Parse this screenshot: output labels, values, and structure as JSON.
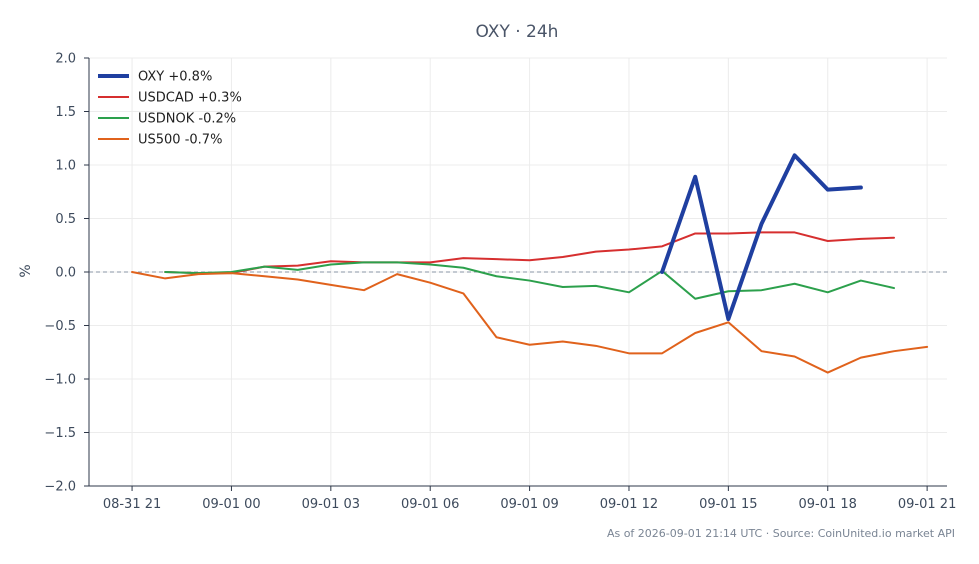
{
  "chart_data": {
    "type": "line",
    "title": "OXY · 24h",
    "ylabel": "%",
    "xlabel": "",
    "ylim": [
      -2.0,
      2.0
    ],
    "yticks": [
      2.0,
      1.5,
      1.0,
      0.5,
      0.0,
      -0.5,
      -1.0,
      -1.5,
      -2.0
    ],
    "ytick_labels": [
      "2.0",
      "1.5",
      "1.0",
      "0.5",
      "0.0",
      "−0.5",
      "−1.0",
      "−1.5",
      "−2.0"
    ],
    "xlim": [
      -1.3,
      24.6
    ],
    "xticks": [
      0,
      3,
      6,
      9,
      12,
      15,
      18,
      21,
      24
    ],
    "xtick_labels": [
      "08-31 21",
      "09-01 00",
      "09-01 03",
      "09-01 06",
      "09-01 09",
      "09-01 12",
      "09-01 15",
      "09-01 18",
      "09-01 21"
    ],
    "x_unit_note": "hours",
    "grid": true,
    "zero_line": true,
    "legend_position": "top-left",
    "series": [
      {
        "name": "OXY +0.8%",
        "color": "#1f3fa0",
        "width": "thick",
        "points": [
          [
            16,
            0.0
          ],
          [
            17,
            0.89
          ],
          [
            18,
            -0.44
          ],
          [
            19,
            0.45
          ],
          [
            20,
            1.09
          ],
          [
            21,
            0.77
          ],
          [
            22,
            0.79
          ]
        ]
      },
      {
        "name": "USDCAD +0.3%",
        "color": "#d62f2f",
        "width": "normal",
        "points": [
          [
            1,
            0.0
          ],
          [
            2,
            -0.01
          ],
          [
            3,
            -0.01
          ],
          [
            4,
            0.05
          ],
          [
            5,
            0.06
          ],
          [
            6,
            0.1
          ],
          [
            7,
            0.09
          ],
          [
            8,
            0.09
          ],
          [
            9,
            0.09
          ],
          [
            10,
            0.13
          ],
          [
            11,
            0.12
          ],
          [
            12,
            0.11
          ],
          [
            13,
            0.14
          ],
          [
            14,
            0.19
          ],
          [
            15,
            0.21
          ],
          [
            16,
            0.24
          ],
          [
            17,
            0.36
          ],
          [
            18,
            0.36
          ],
          [
            19,
            0.37
          ],
          [
            20,
            0.37
          ],
          [
            21,
            0.29
          ],
          [
            22,
            0.31
          ],
          [
            23,
            0.32
          ]
        ]
      },
      {
        "name": "USDNOK -0.2%",
        "color": "#2ca04c",
        "width": "normal",
        "points": [
          [
            1,
            0.0
          ],
          [
            2,
            -0.01
          ],
          [
            3,
            0.0
          ],
          [
            4,
            0.05
          ],
          [
            5,
            0.02
          ],
          [
            6,
            0.07
          ],
          [
            7,
            0.09
          ],
          [
            8,
            0.09
          ],
          [
            9,
            0.07
          ],
          [
            10,
            0.04
          ],
          [
            11,
            -0.04
          ],
          [
            12,
            -0.08
          ],
          [
            13,
            -0.14
          ],
          [
            14,
            -0.13
          ],
          [
            15,
            -0.19
          ],
          [
            16,
            0.01
          ],
          [
            17,
            -0.25
          ],
          [
            18,
            -0.18
          ],
          [
            19,
            -0.17
          ],
          [
            20,
            -0.11
          ],
          [
            21,
            -0.19
          ],
          [
            22,
            -0.08
          ],
          [
            23,
            -0.15
          ]
        ]
      },
      {
        "name": "US500 -0.7%",
        "color": "#e0621c",
        "width": "normal",
        "points": [
          [
            0,
            0.0
          ],
          [
            1,
            -0.06
          ],
          [
            2,
            -0.02
          ],
          [
            3,
            -0.01
          ],
          [
            4,
            -0.04
          ],
          [
            5,
            -0.07
          ],
          [
            6,
            -0.12
          ],
          [
            7,
            -0.17
          ],
          [
            8,
            -0.02
          ],
          [
            9,
            -0.1
          ],
          [
            10,
            -0.2
          ],
          [
            11,
            -0.61
          ],
          [
            12,
            -0.68
          ],
          [
            13,
            -0.65
          ],
          [
            14,
            -0.69
          ],
          [
            15,
            -0.76
          ],
          [
            16,
            -0.76
          ],
          [
            17,
            -0.57
          ],
          [
            18,
            -0.47
          ],
          [
            19,
            -0.74
          ],
          [
            20,
            -0.79
          ],
          [
            21,
            -0.94
          ],
          [
            22,
            -0.8
          ],
          [
            23,
            -0.74
          ],
          [
            24,
            -0.7
          ]
        ]
      }
    ]
  },
  "footer": {
    "text": "As of 2026-09-01 21:14 UTC · Source: CoinUnited.io market API"
  }
}
